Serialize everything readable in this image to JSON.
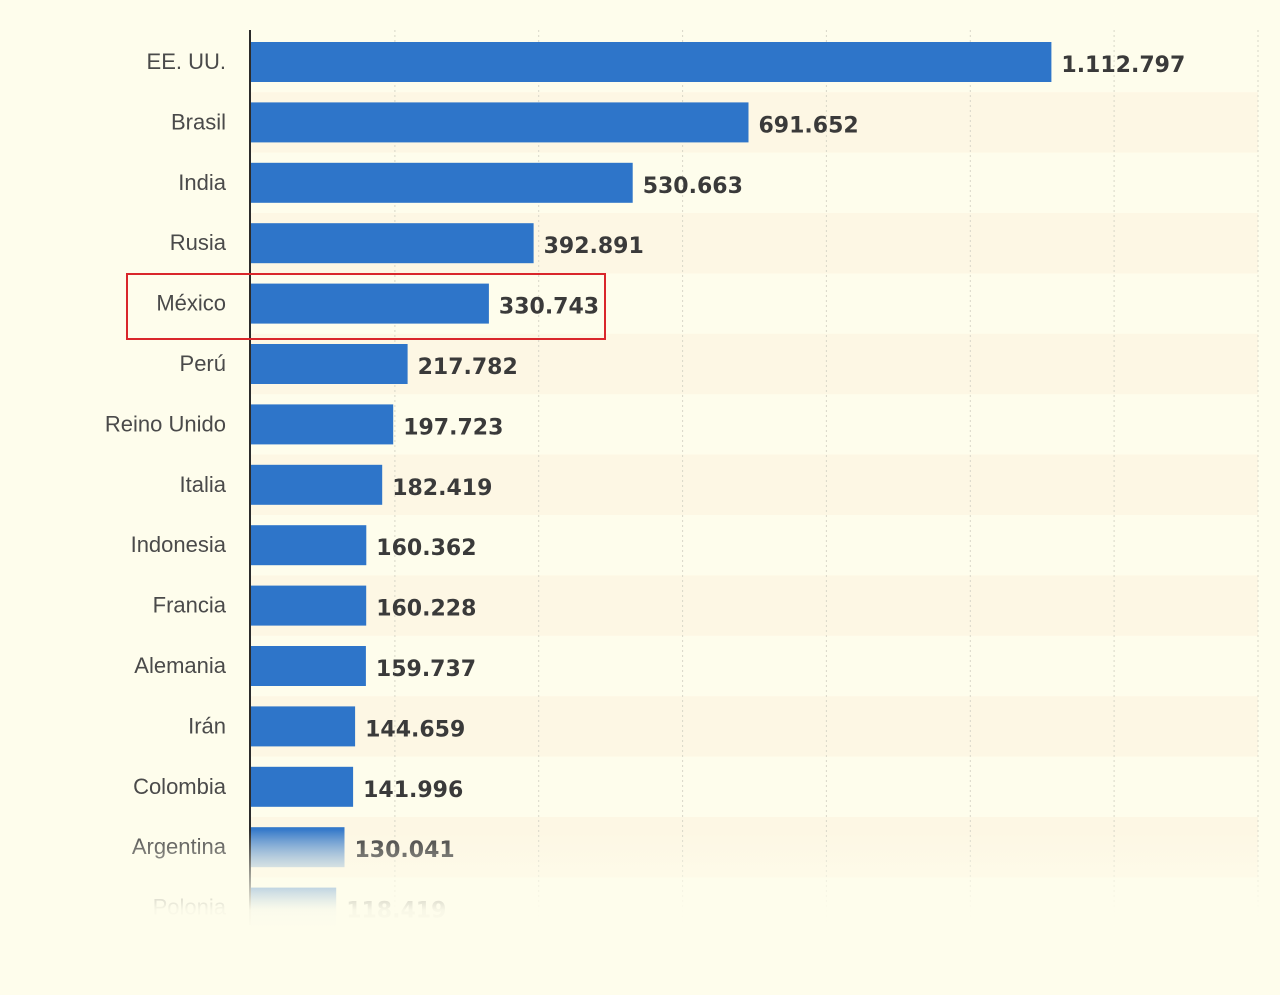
{
  "chart_data": {
    "type": "bar",
    "orientation": "horizontal",
    "categories": [
      "EE. UU.",
      "Brasil",
      "India",
      "Rusia",
      "México",
      "Perú",
      "Reino Unido",
      "Italia",
      "Indonesia",
      "Francia",
      "Alemania",
      "Irán",
      "Colombia",
      "Argentina",
      "Polonia"
    ],
    "values": [
      1112797,
      691652,
      530663,
      392891,
      330743,
      217782,
      197723,
      182419,
      160362,
      160228,
      159737,
      144659,
      141996,
      130041,
      118419
    ],
    "value_labels": [
      "1.112.797",
      "691.652",
      "530.663",
      "392.891",
      "330.743",
      "217.782",
      "197.723",
      "182.419",
      "160.362",
      "160.228",
      "159.737",
      "144.659",
      "141.996",
      "130.041",
      "118.419"
    ],
    "xlim": [
      0,
      1400000
    ],
    "grid": true,
    "highlighted_category": "México",
    "bar_color": "#2e75c9",
    "highlight_color": "#d9262b"
  }
}
